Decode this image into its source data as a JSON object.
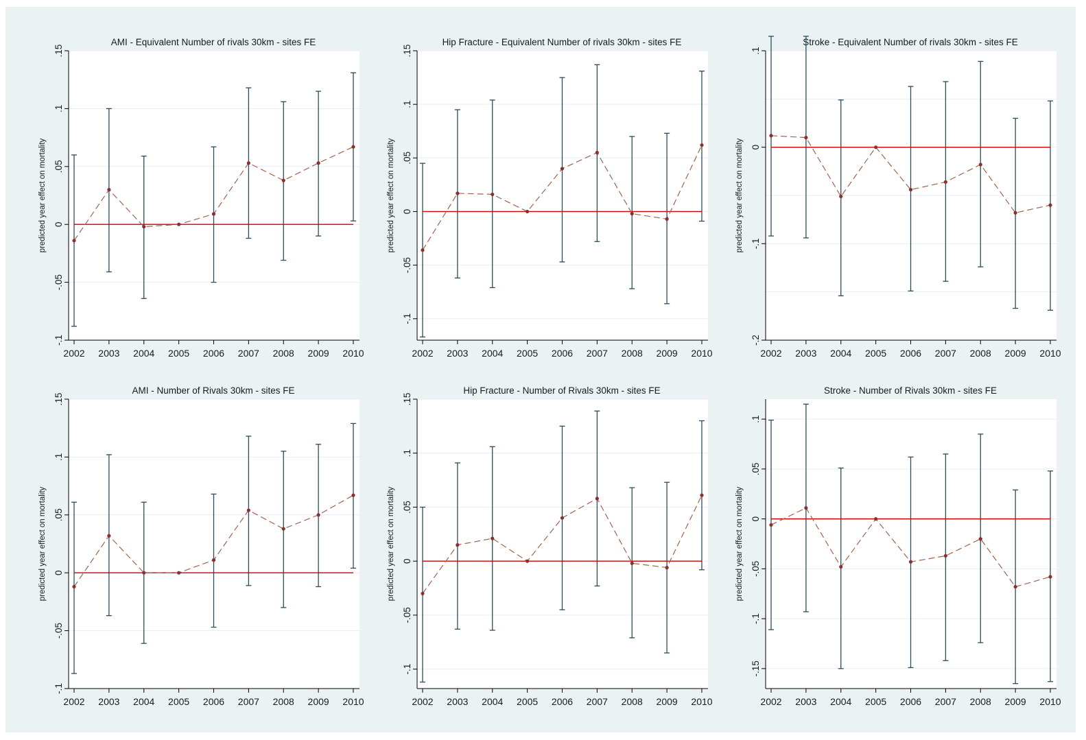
{
  "figure": {
    "colors": {
      "background": "#eaf2f3",
      "plot_area": "#ffffff",
      "grid": "#e6eef0",
      "axis": "#000000",
      "error_bar": "#2a4b5b",
      "estimate_line": "#a0634c",
      "marker": "#8b2f2f",
      "zero_line": "#cc0000"
    }
  },
  "chart_data": [
    {
      "type": "line",
      "title": "AMI - Equivalent Number of rivals 30km - sites FE",
      "ylabel": "predicted year effect on mortality",
      "xlabel": "",
      "x": [
        2002,
        2003,
        2004,
        2005,
        2006,
        2007,
        2008,
        2009,
        2010
      ],
      "y": [
        -0.014,
        0.03,
        -0.002,
        0.0,
        0.009,
        0.053,
        0.038,
        0.053,
        0.067
      ],
      "ci_lower": [
        -0.088,
        -0.041,
        -0.064,
        null,
        -0.05,
        -0.012,
        -0.031,
        -0.01,
        0.003
      ],
      "ci_upper": [
        0.06,
        0.1,
        0.059,
        null,
        0.067,
        0.118,
        0.106,
        0.115,
        0.131
      ],
      "reference_line": 0,
      "ylim": [
        -0.1,
        0.15
      ],
      "yticks": [
        -0.1,
        -0.05,
        0,
        0.05,
        0.1,
        0.15
      ],
      "ytick_labels": [
        "-.1",
        "-.05",
        "0",
        ".05",
        ".1",
        ".15"
      ],
      "grid": true
    },
    {
      "type": "line",
      "title": "Hip Fracture - Equivalent Number of rivals 30km - sites FE",
      "ylabel": "predicted year effect on mortality",
      "xlabel": "",
      "x": [
        2002,
        2003,
        2004,
        2005,
        2006,
        2007,
        2008,
        2009,
        2010
      ],
      "y": [
        -0.036,
        0.017,
        0.016,
        0.0,
        0.04,
        0.055,
        -0.002,
        -0.007,
        0.062
      ],
      "ci_lower": [
        -0.117,
        -0.062,
        -0.071,
        null,
        -0.047,
        -0.028,
        -0.072,
        -0.086,
        -0.009
      ],
      "ci_upper": [
        0.045,
        0.095,
        0.104,
        null,
        0.125,
        0.137,
        0.07,
        0.073,
        0.131
      ],
      "reference_line": 0,
      "ylim": [
        -0.12,
        0.15
      ],
      "yticks": [
        -0.1,
        -0.05,
        0,
        0.05,
        0.1,
        0.15
      ],
      "ytick_labels": [
        "-.1",
        "-.05",
        "0",
        ".05",
        ".1",
        ".15"
      ],
      "grid": true
    },
    {
      "type": "line",
      "title": "Stroke - Equivalent Number of rivals 30km - sites FE",
      "ylabel": "predicted year effect on mortality",
      "xlabel": "",
      "x": [
        2002,
        2003,
        2004,
        2005,
        2006,
        2007,
        2008,
        2009,
        2010
      ],
      "y": [
        0.012,
        0.01,
        -0.051,
        0.0,
        -0.044,
        -0.036,
        -0.018,
        -0.068,
        -0.06
      ],
      "ci_lower": [
        -0.092,
        -0.094,
        -0.154,
        null,
        -0.149,
        -0.139,
        -0.124,
        -0.167,
        -0.169
      ],
      "ci_upper": [
        0.115,
        0.115,
        0.049,
        null,
        0.063,
        0.068,
        0.089,
        0.03,
        0.048
      ],
      "reference_line": 0,
      "ylim": [
        -0.2,
        0.1
      ],
      "yticks": [
        -0.2,
        -0.1,
        0,
        0.1
      ],
      "ytick_labels": [
        "-.2",
        "-.1",
        "0",
        ".1"
      ],
      "minor_grid": [
        -0.15,
        -0.05,
        0.05
      ],
      "grid": true
    },
    {
      "type": "line",
      "title": "AMI - Number of Rivals 30km - sites FE",
      "ylabel": "predicted year effect on mortality",
      "xlabel": "",
      "x": [
        2002,
        2003,
        2004,
        2005,
        2006,
        2007,
        2008,
        2009,
        2010
      ],
      "y": [
        -0.012,
        0.032,
        0.0,
        0.0,
        0.011,
        0.054,
        0.038,
        0.05,
        0.067
      ],
      "ci_lower": [
        -0.087,
        -0.037,
        -0.061,
        null,
        -0.047,
        -0.011,
        -0.03,
        -0.012,
        0.004
      ],
      "ci_upper": [
        0.061,
        0.102,
        0.061,
        null,
        0.068,
        0.118,
        0.105,
        0.111,
        0.129
      ],
      "reference_line": 0,
      "ylim": [
        -0.1,
        0.15
      ],
      "yticks": [
        -0.1,
        -0.05,
        0,
        0.05,
        0.1,
        0.15
      ],
      "ytick_labels": [
        "-.1",
        "-.05",
        "0",
        ".05",
        ".1",
        ".15"
      ],
      "grid": true
    },
    {
      "type": "line",
      "title": "Hip Fracture - Number of Rivals 30km - sites FE",
      "ylabel": "predicted year effect on mortality",
      "xlabel": "",
      "x": [
        2002,
        2003,
        2004,
        2005,
        2006,
        2007,
        2008,
        2009,
        2010
      ],
      "y": [
        -0.03,
        0.015,
        0.021,
        0.0,
        0.04,
        0.058,
        -0.002,
        -0.006,
        0.061
      ],
      "ci_lower": [
        -0.112,
        -0.063,
        -0.064,
        null,
        -0.045,
        -0.023,
        -0.071,
        -0.085,
        -0.008
      ],
      "ci_upper": [
        0.05,
        0.091,
        0.106,
        null,
        0.125,
        0.139,
        0.068,
        0.073,
        0.13
      ],
      "reference_line": 0,
      "ylim": [
        -0.118,
        0.15
      ],
      "yticks": [
        -0.1,
        -0.05,
        0,
        0.05,
        0.1,
        0.15
      ],
      "ytick_labels": [
        "-.1",
        "-.05",
        "0",
        ".05",
        ".1",
        ".15"
      ],
      "grid": true
    },
    {
      "type": "line",
      "title": "Stroke - Number of Rivals 30km - sites FE",
      "ylabel": "predicted year effect on mortality",
      "xlabel": "",
      "x": [
        2002,
        2003,
        2004,
        2005,
        2006,
        2007,
        2008,
        2009,
        2010
      ],
      "y": [
        -0.006,
        0.011,
        -0.048,
        0.0,
        -0.043,
        -0.037,
        -0.02,
        -0.068,
        -0.058
      ],
      "ci_lower": [
        -0.111,
        -0.093,
        -0.15,
        null,
        -0.149,
        -0.142,
        -0.124,
        -0.165,
        -0.163
      ],
      "ci_upper": [
        0.099,
        0.115,
        0.051,
        null,
        0.062,
        0.065,
        0.085,
        0.029,
        0.048
      ],
      "reference_line": 0,
      "ylim": [
        -0.17,
        0.12
      ],
      "yticks": [
        -0.15,
        -0.1,
        -0.05,
        0,
        0.05,
        0.1
      ],
      "ytick_labels": [
        "-.15",
        "-.1",
        "-.05",
        "0",
        ".05",
        ".1"
      ],
      "grid": true
    }
  ]
}
